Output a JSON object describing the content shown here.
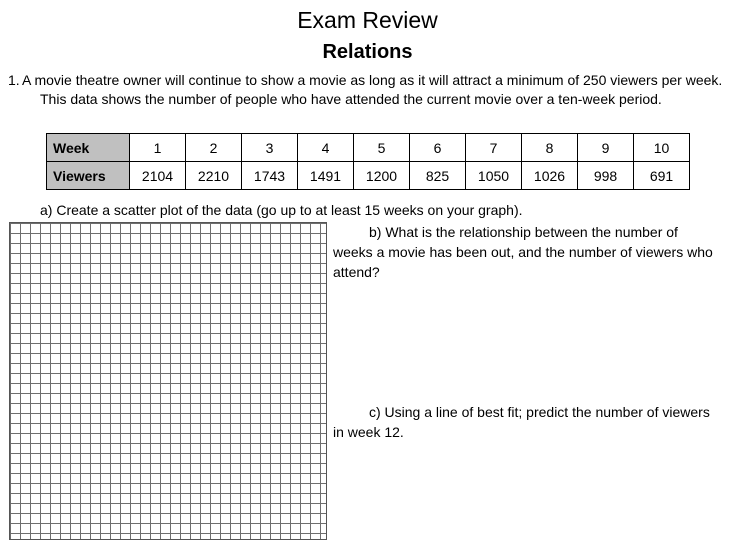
{
  "header": {
    "title": "Exam Review",
    "subtitle": "Relations"
  },
  "question1": {
    "number": "1.",
    "text": "A movie theatre owner will continue to show a movie as long as it will attract a minimum of 250 viewers per week. This data shows the number of people who have attended the current movie over a ten-week period."
  },
  "table": {
    "row_headers": [
      "Week",
      "Viewers"
    ],
    "weeks": [
      "1",
      "2",
      "3",
      "4",
      "5",
      "6",
      "7",
      "8",
      "9",
      "10"
    ],
    "viewers": [
      "2104",
      "2210",
      "1743",
      "1491",
      "1200",
      "825",
      "1050",
      "1026",
      "998",
      "691"
    ]
  },
  "parts": {
    "a": "a)  Create a scatter plot of the data (go up to at least 15 weeks on your graph).",
    "b": "b)   What is the relationship between the number of weeks a movie has been out, and the number of viewers who attend?",
    "c": "c)   Using a line of best fit; predict the number of viewers in week 12."
  }
}
